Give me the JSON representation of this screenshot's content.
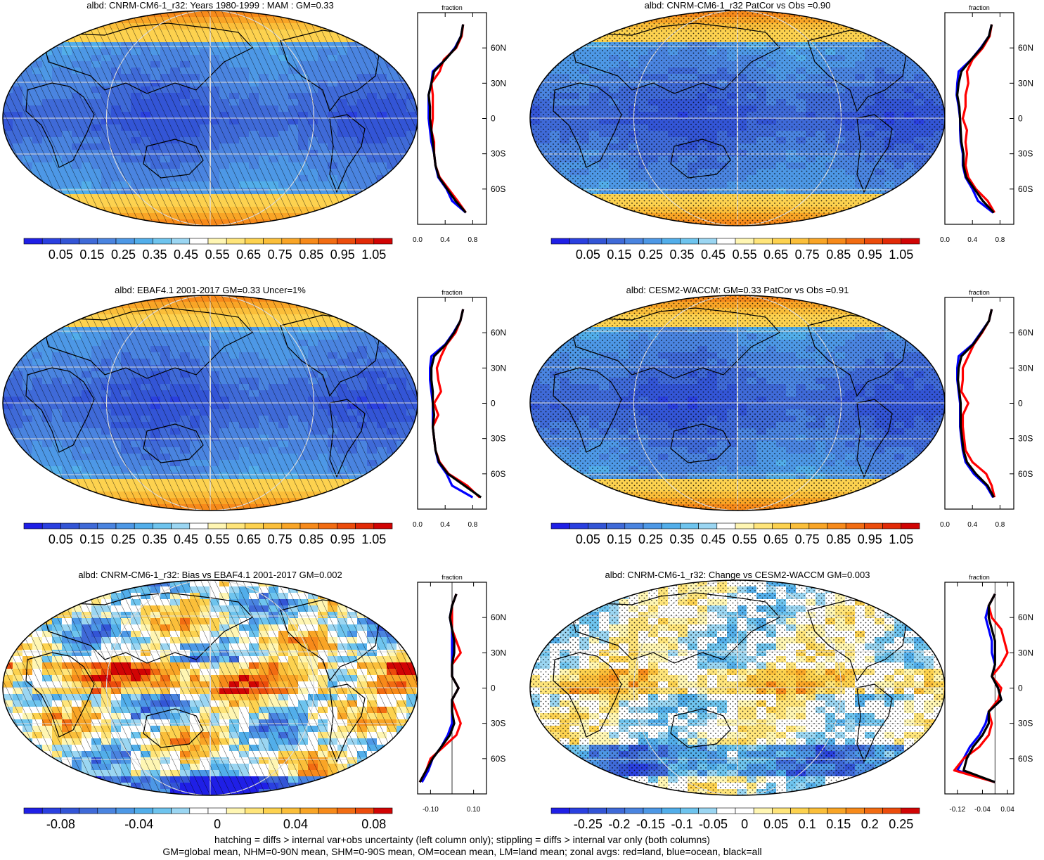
{
  "footer": {
    "line1": "hatching = diffs > internal var+obs uncertainty (left column only); stippling = diffs > internal var only (both columns)",
    "line2": "GM=global mean, NHM=0-90N mean, SHM=0-90S mean, OM=ocean mean, LM=land mean; zonal avgs: red=land, blue=ocean, black=all"
  },
  "colors": {
    "land": "#ff0000",
    "ocean": "#0000ff",
    "all": "#000000"
  },
  "profile_lat_ticks": [
    "60N",
    "30N",
    "0",
    "30S",
    "60S"
  ],
  "profile_top_label": "fraction",
  "chart_data": [
    {
      "id": "p1",
      "type": "heatmap",
      "title": "albd: CNRM-CM6-1_r32: Years 1980-1999 : MAM : GM=0.33",
      "pattern": "hatch",
      "overlay": "hatching",
      "colorbar": {
        "labels": [
          "0.05",
          "0.15",
          "0.25",
          "0.35",
          "0.45",
          "0.55",
          "0.65",
          "0.75",
          "0.85",
          "0.95",
          "1.05"
        ]
      },
      "profile": {
        "xlim": [
          0,
          1
        ],
        "ticks": [
          0.0,
          0.4,
          0.8
        ],
        "tick_labels": [
          "0.0",
          "0.4",
          "0.8"
        ],
        "lat": [
          80,
          70,
          60,
          50,
          40,
          30,
          20,
          10,
          0,
          -10,
          -20,
          -30,
          -40,
          -50,
          -60,
          -70,
          -80
        ],
        "land": [
          0.66,
          0.64,
          0.56,
          0.38,
          0.32,
          0.2,
          0.22,
          0.22,
          0.22,
          0.2,
          0.24,
          0.24,
          0.26,
          0.32,
          0.45,
          0.58,
          0.7
        ],
        "ocean": [
          0.66,
          0.63,
          0.54,
          0.4,
          0.22,
          0.2,
          0.16,
          0.16,
          0.16,
          0.18,
          0.2,
          0.24,
          0.26,
          0.3,
          0.42,
          0.5,
          0.7
        ],
        "all": [
          0.66,
          0.63,
          0.55,
          0.4,
          0.24,
          0.2,
          0.16,
          0.18,
          0.18,
          0.2,
          0.22,
          0.24,
          0.26,
          0.31,
          0.43,
          0.55,
          0.7
        ]
      }
    },
    {
      "id": "p2",
      "type": "heatmap",
      "title": "albd: CNRM-CM6-1_r32 PatCor vs Obs =0.90",
      "pattern": "stipple",
      "overlay": "stippling",
      "colorbar": {
        "labels": [
          "0.05",
          "0.15",
          "0.25",
          "0.35",
          "0.45",
          "0.55",
          "0.65",
          "0.75",
          "0.85",
          "0.95",
          "1.05"
        ]
      },
      "profile": {
        "xlim": [
          0,
          1
        ],
        "ticks": [
          0.0,
          0.4,
          0.8
        ],
        "tick_labels": [
          "0.0",
          "0.4",
          "0.8"
        ],
        "lat": [
          80,
          70,
          60,
          50,
          40,
          30,
          20,
          10,
          0,
          -10,
          -20,
          -30,
          -40,
          -50,
          -60,
          -70,
          -80
        ],
        "land": [
          0.68,
          0.65,
          0.55,
          0.4,
          0.32,
          0.34,
          0.3,
          0.3,
          0.26,
          0.32,
          0.3,
          0.32,
          0.3,
          0.34,
          0.45,
          0.62,
          0.72
        ],
        "ocean": [
          0.68,
          0.64,
          0.52,
          0.38,
          0.2,
          0.18,
          0.17,
          0.2,
          0.22,
          0.22,
          0.23,
          0.26,
          0.26,
          0.3,
          0.4,
          0.48,
          0.7
        ],
        "all": [
          0.68,
          0.64,
          0.53,
          0.38,
          0.24,
          0.2,
          0.18,
          0.21,
          0.22,
          0.23,
          0.24,
          0.27,
          0.27,
          0.31,
          0.43,
          0.55,
          0.71
        ]
      }
    },
    {
      "id": "p3",
      "type": "heatmap",
      "title": "albd: EBAF4.1 2001-2017 GM=0.33 Uncer=1%",
      "pattern": "hatch",
      "overlay": "hatching",
      "colorbar": {
        "labels": [
          "0.05",
          "0.15",
          "0.25",
          "0.35",
          "0.45",
          "0.55",
          "0.65",
          "0.75",
          "0.85",
          "0.95",
          "1.05"
        ]
      },
      "profile": {
        "xlim": [
          0,
          1
        ],
        "ticks": [
          0.0,
          0.4,
          0.8
        ],
        "tick_labels": [
          "0.0",
          "0.4",
          "0.8"
        ],
        "lat": [
          80,
          70,
          60,
          50,
          40,
          30,
          20,
          10,
          0,
          -10,
          -20,
          -30,
          -40,
          -50,
          -60,
          -70,
          -80
        ],
        "land": [
          0.66,
          0.62,
          0.55,
          0.42,
          0.34,
          0.28,
          0.3,
          0.34,
          0.24,
          0.3,
          0.22,
          0.24,
          0.26,
          0.32,
          0.45,
          0.72,
          0.9
        ],
        "ocean": [
          0.66,
          0.62,
          0.52,
          0.4,
          0.2,
          0.18,
          0.18,
          0.2,
          0.22,
          0.22,
          0.22,
          0.24,
          0.26,
          0.3,
          0.42,
          0.5,
          0.8
        ],
        "all": [
          0.66,
          0.62,
          0.53,
          0.41,
          0.24,
          0.2,
          0.2,
          0.22,
          0.22,
          0.24,
          0.22,
          0.24,
          0.26,
          0.31,
          0.44,
          0.68,
          0.92
        ]
      }
    },
    {
      "id": "p4",
      "type": "heatmap",
      "title": "albd: CESM2-WACCM: GM=0.33 PatCor vs Obs =0.91",
      "pattern": "stipple",
      "overlay": "stippling",
      "colorbar": {
        "labels": [
          "0.05",
          "0.15",
          "0.25",
          "0.35",
          "0.45",
          "0.55",
          "0.65",
          "0.75",
          "0.85",
          "0.95",
          "1.05"
        ]
      },
      "profile": {
        "xlim": [
          0,
          1
        ],
        "ticks": [
          0.0,
          0.4,
          0.8
        ],
        "tick_labels": [
          "0.0",
          "0.4",
          "0.8"
        ],
        "lat": [
          80,
          70,
          60,
          50,
          40,
          30,
          20,
          10,
          0,
          -10,
          -20,
          -30,
          -40,
          -50,
          -60,
          -70,
          -80
        ],
        "land": [
          0.68,
          0.64,
          0.54,
          0.42,
          0.34,
          0.26,
          0.26,
          0.24,
          0.34,
          0.26,
          0.26,
          0.28,
          0.3,
          0.4,
          0.6,
          0.68,
          0.72
        ],
        "ocean": [
          0.68,
          0.64,
          0.52,
          0.4,
          0.2,
          0.18,
          0.18,
          0.2,
          0.22,
          0.22,
          0.22,
          0.24,
          0.26,
          0.3,
          0.42,
          0.6,
          0.7
        ],
        "all": [
          0.68,
          0.64,
          0.53,
          0.41,
          0.24,
          0.2,
          0.19,
          0.21,
          0.23,
          0.23,
          0.23,
          0.25,
          0.27,
          0.32,
          0.45,
          0.62,
          0.71
        ]
      }
    },
    {
      "id": "p5",
      "type": "heatmap",
      "title": "albd: CNRM-CM6-1_r32: Bias vs EBAF4.1 2001-2017 GM=0.002",
      "pattern": "bias",
      "overlay": "hatching",
      "colorbar": {
        "labels": [
          "-0.08",
          "-0.04",
          "0",
          "0.04",
          "0.08"
        ]
      },
      "profile": {
        "xlim": [
          -0.16,
          0.16
        ],
        "ticks": [
          -0.1,
          0.1
        ],
        "tick_labels": [
          "-0.10",
          "0.10"
        ],
        "lat": [
          80,
          70,
          60,
          50,
          40,
          30,
          20,
          10,
          0,
          -10,
          -20,
          -30,
          -40,
          -50,
          -60,
          -70,
          -80
        ],
        "land": [
          0.02,
          0.0,
          0.0,
          0.0,
          0.02,
          0.04,
          0.0,
          0.0,
          0.03,
          0.0,
          0.02,
          0.04,
          0.02,
          -0.04,
          -0.1,
          -0.12,
          -0.15
        ],
        "ocean": [
          0.02,
          0.0,
          -0.01,
          0.0,
          0.0,
          0.0,
          0.0,
          0.0,
          0.03,
          0.0,
          0.0,
          0.0,
          -0.02,
          -0.05,
          -0.09,
          -0.11,
          -0.14
        ],
        "all": [
          0.02,
          0.0,
          -0.01,
          0.0,
          0.01,
          0.01,
          0.0,
          0.0,
          0.03,
          0.0,
          0.0,
          0.01,
          -0.01,
          -0.05,
          -0.09,
          -0.12,
          -0.15
        ]
      }
    },
    {
      "id": "p6",
      "type": "heatmap",
      "title": "albd: CNRM-CM6-1_r32: Change vs CESM2-WACCM GM=0.003",
      "pattern": "change",
      "overlay": "stippling",
      "colorbar": {
        "labels": [
          "-0.25",
          "-0.2",
          "-0.15",
          "-0.1",
          "-0.05",
          "0",
          "0.05",
          "0.1",
          "0.15",
          "0.2",
          "0.25"
        ]
      },
      "profile": {
        "xlim": [
          -0.16,
          0.06
        ],
        "ticks": [
          -0.12,
          -0.04,
          0.04
        ],
        "tick_labels": [
          "-0.12",
          "-0.04",
          "0.04"
        ],
        "lat": [
          80,
          70,
          60,
          50,
          40,
          30,
          20,
          10,
          0,
          -10,
          -20,
          -30,
          -40,
          -50,
          -60,
          -70,
          -80
        ],
        "land": [
          0.0,
          -0.02,
          -0.01,
          0.02,
          0.03,
          0.04,
          0.02,
          -0.01,
          0.02,
          0.01,
          -0.02,
          -0.01,
          -0.02,
          -0.05,
          -0.1,
          -0.13,
          0.0
        ],
        "ocean": [
          0.0,
          -0.02,
          -0.03,
          -0.02,
          -0.01,
          -0.01,
          0.0,
          -0.01,
          0.01,
          0.02,
          -0.02,
          -0.03,
          -0.05,
          -0.08,
          -0.1,
          -0.12,
          0.0
        ],
        "all": [
          0.0,
          -0.02,
          -0.02,
          -0.01,
          0.0,
          0.0,
          0.0,
          -0.01,
          0.01,
          0.02,
          -0.02,
          -0.02,
          -0.04,
          -0.07,
          -0.09,
          -0.1,
          0.0
        ]
      }
    }
  ]
}
